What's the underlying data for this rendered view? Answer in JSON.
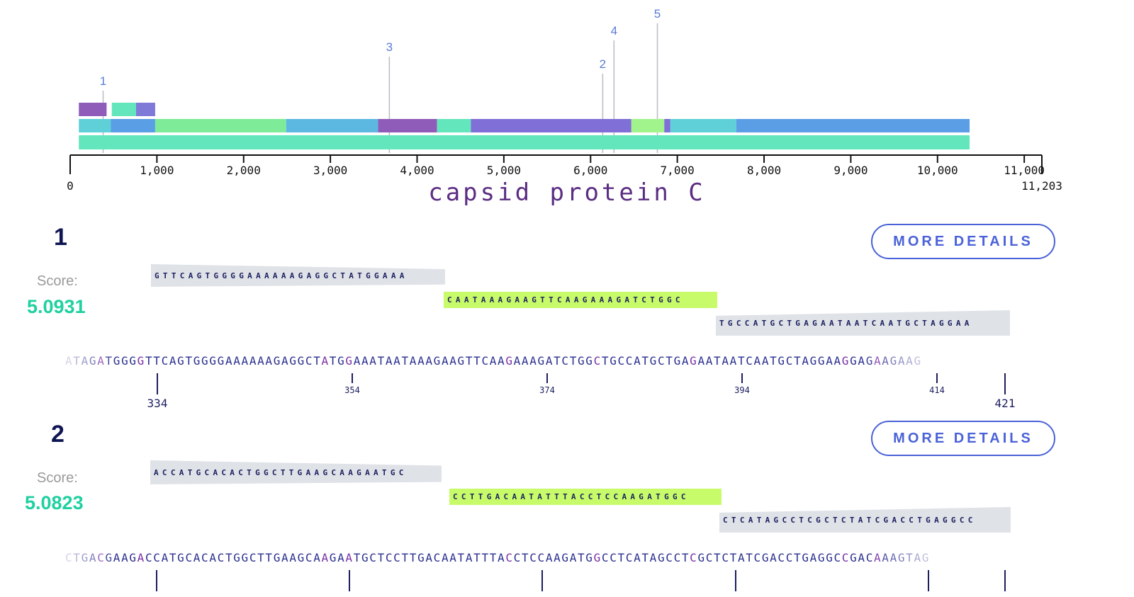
{
  "genome": {
    "length": 11203,
    "ticks": [
      1000,
      2000,
      3000,
      4000,
      5000,
      6000,
      7000,
      8000,
      9000,
      10000,
      11000
    ],
    "tick_labels": [
      "1,000",
      "2,000",
      "3,000",
      "4,000",
      "5,000",
      "6,000",
      "7,000",
      "8,000",
      "9,000",
      "10,000",
      "11,000"
    ],
    "start_label": "0",
    "end_label": "11,203",
    "top_features": [
      {
        "start": 100,
        "end": 420,
        "color": "#8f5cba"
      },
      {
        "start": 480,
        "end": 760,
        "color": "#63e6bc"
      },
      {
        "start": 760,
        "end": 980,
        "color": "#7f79d8"
      }
    ],
    "mid_features": [
      {
        "start": 100,
        "end": 470,
        "color": "#5fd0d8"
      },
      {
        "start": 470,
        "end": 980,
        "color": "#5a9ee6"
      },
      {
        "start": 980,
        "end": 2490,
        "color": "#7deb98"
      },
      {
        "start": 2490,
        "end": 3550,
        "color": "#5cb8e0"
      },
      {
        "start": 3550,
        "end": 4230,
        "color": "#8f5cba"
      },
      {
        "start": 4230,
        "end": 4620,
        "color": "#63e6bc"
      },
      {
        "start": 4620,
        "end": 6470,
        "color": "#7f6fd6"
      },
      {
        "start": 6470,
        "end": 6850,
        "color": "#a1f38b"
      },
      {
        "start": 6850,
        "end": 6920,
        "color": "#7f6fd6"
      },
      {
        "start": 6920,
        "end": 7680,
        "color": "#5fd0d8"
      },
      {
        "start": 7680,
        "end": 10370,
        "color": "#5b9ee6"
      }
    ],
    "base_feature": {
      "start": 100,
      "end": 10370,
      "color": "#63e6bc"
    },
    "markers": [
      {
        "label": "1",
        "pos": 380
      },
      {
        "label": "2",
        "pos": 6140
      },
      {
        "label": "3",
        "pos": 3680
      },
      {
        "label": "4",
        "pos": 6270
      },
      {
        "label": "5",
        "pos": 6770
      }
    ],
    "gene_name": "capsid protein C"
  },
  "results": [
    {
      "index": "1",
      "score_label": "Score:",
      "score": "5.0931",
      "button": "MORE DETAILS",
      "primers": [
        {
          "seq": "GTTCAGTGGGGAAAAAAGAGGCTATGGAAA",
          "type": "grey"
        },
        {
          "seq": "CAATAAAGAAGTTCAAGAAAGATCTGGC",
          "type": "green"
        },
        {
          "seq": "TGCCATGCTGAGAATAATCAATGCTAGGAA",
          "type": "grey"
        }
      ],
      "sequence": "ATAGATGGGGTTCAGTGGGGAAAAAAGAGGCTATGGAAATAATAAAGAAGTTCAAGAAAGATCTGGCTGCCATGCTGAGAATAATCAATGCTAGGAAGGAGAAGAAG",
      "start": "334",
      "end": "421",
      "ticks": [
        "354",
        "374",
        "394",
        "414"
      ]
    },
    {
      "index": "2",
      "score_label": "Score:",
      "score": "5.0823",
      "button": "MORE DETAILS",
      "primers": [
        {
          "seq": "ACCATGCACACTGGCTTGAAGCAAGAATGC",
          "type": "grey"
        },
        {
          "seq": "CCTTGACAATATTTACCTCCAAGATGGC",
          "type": "green"
        },
        {
          "seq": "CTCATAGCCTCGCTCTATCGACCTGAGGCC",
          "type": "grey"
        }
      ],
      "sequence": "CTGACGAAGACCATGCACACTGGCTTGAAGCAAGAATGCTCCTTGACAATATTTACCTCCAAGATGGCCTCATAGCCTCGCTCTATCGACCTGAGGCCGACAAAGTAG",
      "start": "",
      "end": "",
      "ticks": []
    }
  ]
}
